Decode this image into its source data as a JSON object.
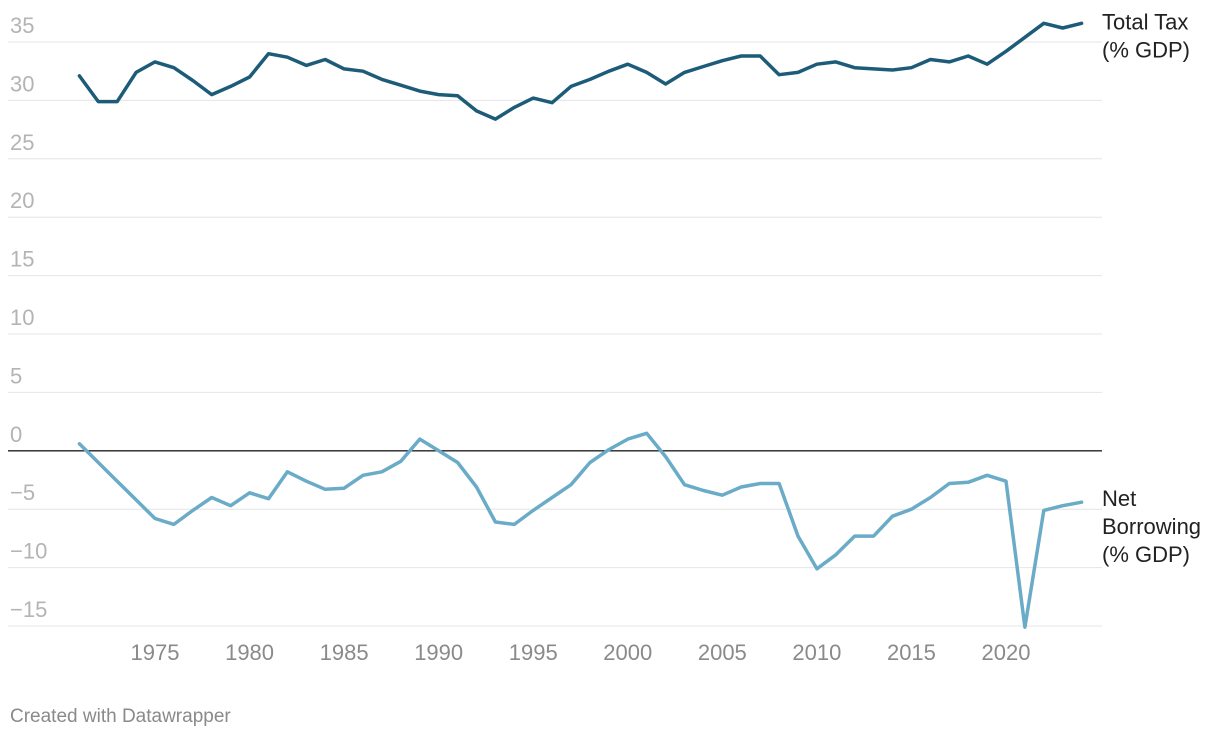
{
  "footer": {
    "credit": "Created with Datawrapper"
  },
  "chart_data": {
    "type": "line",
    "title": "",
    "xlabel": "",
    "ylabel": "",
    "xlim": [
      1967,
      2026
    ],
    "ylim": [
      -15,
      35
    ],
    "y_ticks": [
      35,
      30,
      25,
      20,
      15,
      10,
      5,
      0,
      -5,
      -10,
      -15
    ],
    "x_ticks": [
      1975,
      1980,
      1985,
      1990,
      1995,
      2000,
      2005,
      2010,
      2015,
      2020
    ],
    "grid": "horizontal",
    "zero_line": true,
    "legend": "direct labels at right end of lines",
    "x": [
      1971,
      1972,
      1973,
      1974,
      1975,
      1976,
      1977,
      1978,
      1979,
      1980,
      1981,
      1982,
      1983,
      1984,
      1985,
      1986,
      1987,
      1988,
      1989,
      1990,
      1991,
      1992,
      1993,
      1994,
      1995,
      1996,
      1997,
      1998,
      1999,
      2000,
      2001,
      2002,
      2003,
      2004,
      2005,
      2006,
      2007,
      2008,
      2009,
      2010,
      2011,
      2012,
      2013,
      2014,
      2015,
      2016,
      2017,
      2018,
      2019,
      2020,
      2021,
      2022,
      2023,
      2024
    ],
    "series": [
      {
        "name": "Total Tax\n(% GDP)",
        "label_lines": [
          "Total Tax",
          "(% GDP)"
        ],
        "color": "#1d5c78",
        "values": [
          32.1,
          29.9,
          29.9,
          32.4,
          33.3,
          32.8,
          31.7,
          30.5,
          31.2,
          32.0,
          34.0,
          33.7,
          33.0,
          33.5,
          32.7,
          32.5,
          31.8,
          31.3,
          30.8,
          30.5,
          30.4,
          29.1,
          28.4,
          29.4,
          30.2,
          29.8,
          31.2,
          31.8,
          32.5,
          33.1,
          32.4,
          31.4,
          32.4,
          32.9,
          33.4,
          33.8,
          33.8,
          32.2,
          32.4,
          33.1,
          33.3,
          32.8,
          32.7,
          32.6,
          32.8,
          33.5,
          33.3,
          33.8,
          33.1,
          34.2,
          35.4,
          36.6,
          36.2,
          36.6
        ]
      },
      {
        "name": "Net Borrowing\n(% GDP)",
        "label_lines": [
          "Net",
          "Borrowing",
          "(% GDP)"
        ],
        "color": "#6aabc8",
        "values": [
          0.6,
          -1.0,
          -2.6,
          -4.2,
          -5.8,
          -6.3,
          -5.1,
          -4.0,
          -4.7,
          -3.6,
          -4.1,
          -1.8,
          -2.6,
          -3.3,
          -3.2,
          -2.1,
          -1.8,
          -0.9,
          1.0,
          0.0,
          -1.0,
          -3.1,
          -6.1,
          -6.3,
          -5.1,
          -4.0,
          -2.9,
          -1.0,
          0.1,
          1.0,
          1.5,
          -0.5,
          -2.9,
          -3.4,
          -3.8,
          -3.1,
          -2.8,
          -2.8,
          -7.3,
          -10.1,
          -8.9,
          -7.3,
          -7.3,
          -5.6,
          -5.0,
          -4.0,
          -2.8,
          -2.7,
          -2.1,
          -2.6,
          -15.1,
          -5.1,
          -4.7,
          -4.4
        ]
      }
    ]
  }
}
